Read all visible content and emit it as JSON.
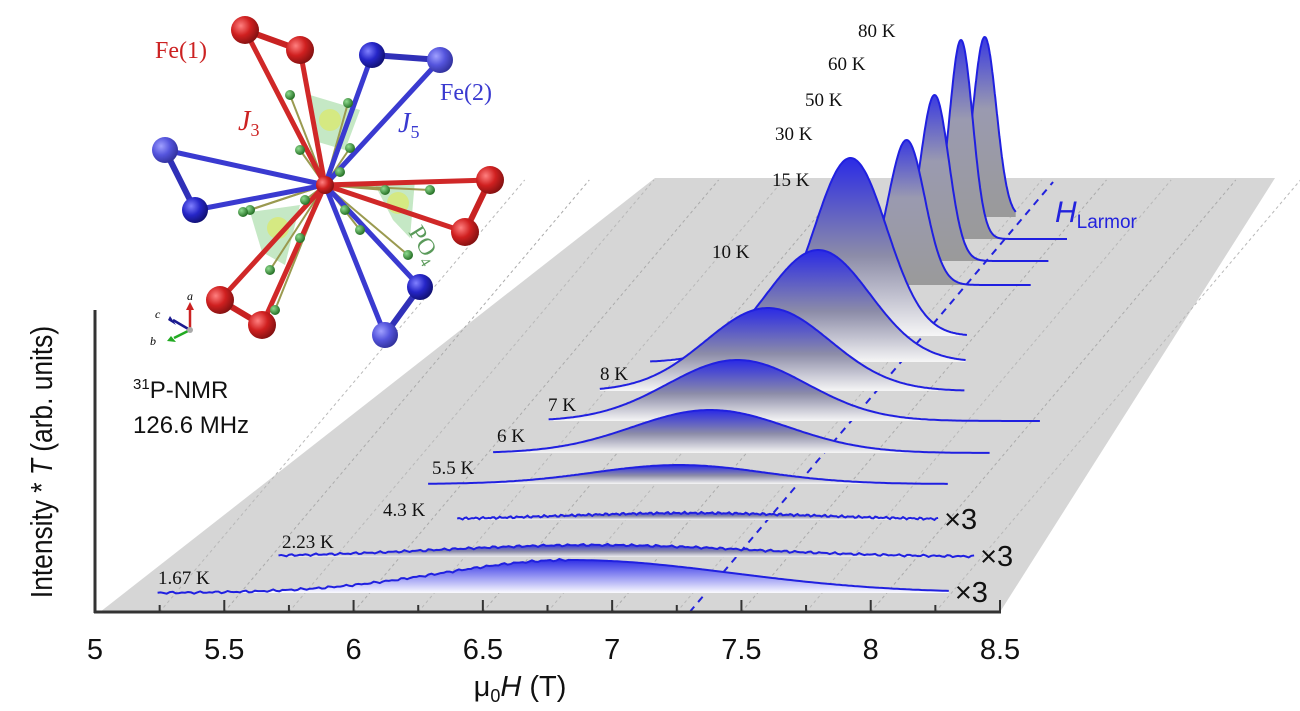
{
  "chart_data": {
    "type": "line",
    "style": "waterfall",
    "xlabel_parts": {
      "mu": "μ",
      "sub": "0",
      "var": "H",
      "unit": " (T)"
    },
    "ylabel_parts": {
      "pre": "Intensity * ",
      "var": "T",
      "post": " (arb. units)"
    },
    "xlim": [
      5,
      8.5
    ],
    "xticks": [
      "5",
      "5.5",
      "6",
      "6.5",
      "7",
      "7.5",
      "8",
      "8.5"
    ],
    "minor_tick_step": 0.25,
    "grid": true,
    "annotation": {
      "nucleus_sup": "31",
      "nucleus": "P-NMR",
      "frequency": "126.6 MHz"
    },
    "larmor": {
      "label_var": "H",
      "label_sub": "Larmor",
      "field": 7.3,
      "color": "#2222dd"
    },
    "line_color": "#2020e0",
    "series": [
      {
        "name": "1.67 K",
        "peak_field": 6.78,
        "peak_intensity": 33,
        "width": 0.5,
        "field_range": [
          5.18,
          8.24
        ],
        "scale": "×3"
      },
      {
        "name": "2.23 K",
        "peak_field": 6.75,
        "peak_intensity": 12,
        "width": 0.6,
        "field_range": [
          5.53,
          8.22
        ],
        "scale": "×3"
      },
      {
        "name": "4.3 K",
        "peak_field": 7.0,
        "peak_intensity": 7,
        "width": 0.5,
        "field_range": [
          6.1,
          7.96
        ],
        "scale": "×3"
      },
      {
        "name": "5.5 K",
        "peak_field": 6.84,
        "peak_intensity": 19,
        "width": 0.33,
        "field_range": [
          5.87,
          7.88
        ],
        "scale": ""
      },
      {
        "name": "6 K",
        "peak_field": 6.86,
        "peak_intensity": 43,
        "width": 0.3,
        "field_range": [
          6.02,
          7.94
        ],
        "scale": ""
      },
      {
        "name": "7 K",
        "peak_field": 6.86,
        "peak_intensity": 61,
        "width": 0.27,
        "field_range": [
          6.13,
          8.03
        ],
        "scale": ""
      },
      {
        "name": "8 K",
        "peak_field": 6.88,
        "peak_intensity": 83,
        "width": 0.24,
        "field_range": [
          6.23,
          7.64
        ],
        "scale": ""
      },
      {
        "name": "10 K",
        "peak_field": 6.98,
        "peak_intensity": 112,
        "width": 0.2,
        "field_range": [
          6.33,
          7.55
        ],
        "scale": ""
      },
      {
        "name": "15 K",
        "peak_field": 7.02,
        "peak_intensity": 178,
        "width": 0.14,
        "field_range": [
          6.48,
          7.47
        ],
        "scale": ""
      },
      {
        "name": "30 K",
        "peak_field": 7.07,
        "peak_intensity": 145,
        "width": 0.07,
        "field_range": [
          6.6,
          7.55
        ],
        "scale": ""
      },
      {
        "name": "50 K",
        "peak_field": 7.1,
        "peak_intensity": 166,
        "width": 0.055,
        "field_range": [
          6.7,
          7.54
        ],
        "scale": ""
      },
      {
        "name": "60 K",
        "peak_field": 7.13,
        "peak_intensity": 199,
        "width": 0.045,
        "field_range": [
          6.8,
          7.54
        ],
        "scale": ""
      },
      {
        "name": "80 K",
        "peak_field": 7.15,
        "peak_intensity": 180,
        "width": 0.045,
        "field_range": [
          6.85,
          7.27
        ],
        "scale": ""
      }
    ]
  },
  "inset": {
    "fe1": "Fe(1)",
    "fe2": "Fe(2)",
    "j3": {
      "var": "J",
      "sub": "3"
    },
    "j5": {
      "var": "J",
      "sub": "5"
    },
    "po4": {
      "main": "PO",
      "sub": "4"
    },
    "axes": {
      "a": "a",
      "b": "b",
      "c": "c"
    },
    "colors": {
      "fe1": "#cc2222",
      "fe2": "#2a2ad0",
      "oxygen": "#2f8a2f",
      "tetrahedron": "#9fd89f"
    }
  }
}
